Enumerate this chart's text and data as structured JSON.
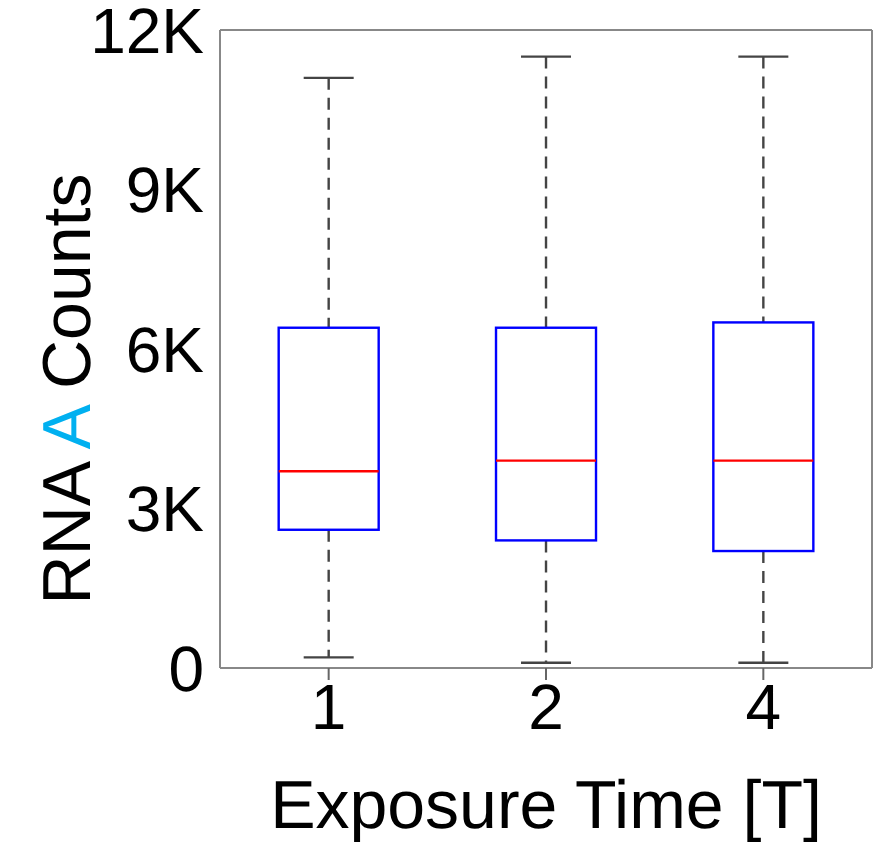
{
  "chart_data": {
    "type": "box",
    "xlabel": "Exposure Time [T]",
    "ylabel": "RNA A Counts",
    "categories": [
      "1",
      "2",
      "4"
    ],
    "ylim": [
      0,
      12000
    ],
    "yticks": [
      {
        "value": 0,
        "label": "0"
      },
      {
        "value": 3000,
        "label": "3K"
      },
      {
        "value": 6000,
        "label": "6K"
      },
      {
        "value": 9000,
        "label": "9K"
      },
      {
        "value": 12000,
        "label": "12K"
      }
    ],
    "grid": false,
    "series": [
      {
        "color": "#0000ff",
        "boxes": [
          {
            "low": 200,
            "q1": 2600,
            "median": 3700,
            "q3": 6400,
            "high": 11100
          },
          {
            "low": 100,
            "q1": 2400,
            "median": 3900,
            "q3": 6400,
            "high": 11500
          },
          {
            "low": 100,
            "q1": 2200,
            "median": 3900,
            "q3": 6500,
            "high": 11500
          }
        ]
      }
    ]
  }
}
